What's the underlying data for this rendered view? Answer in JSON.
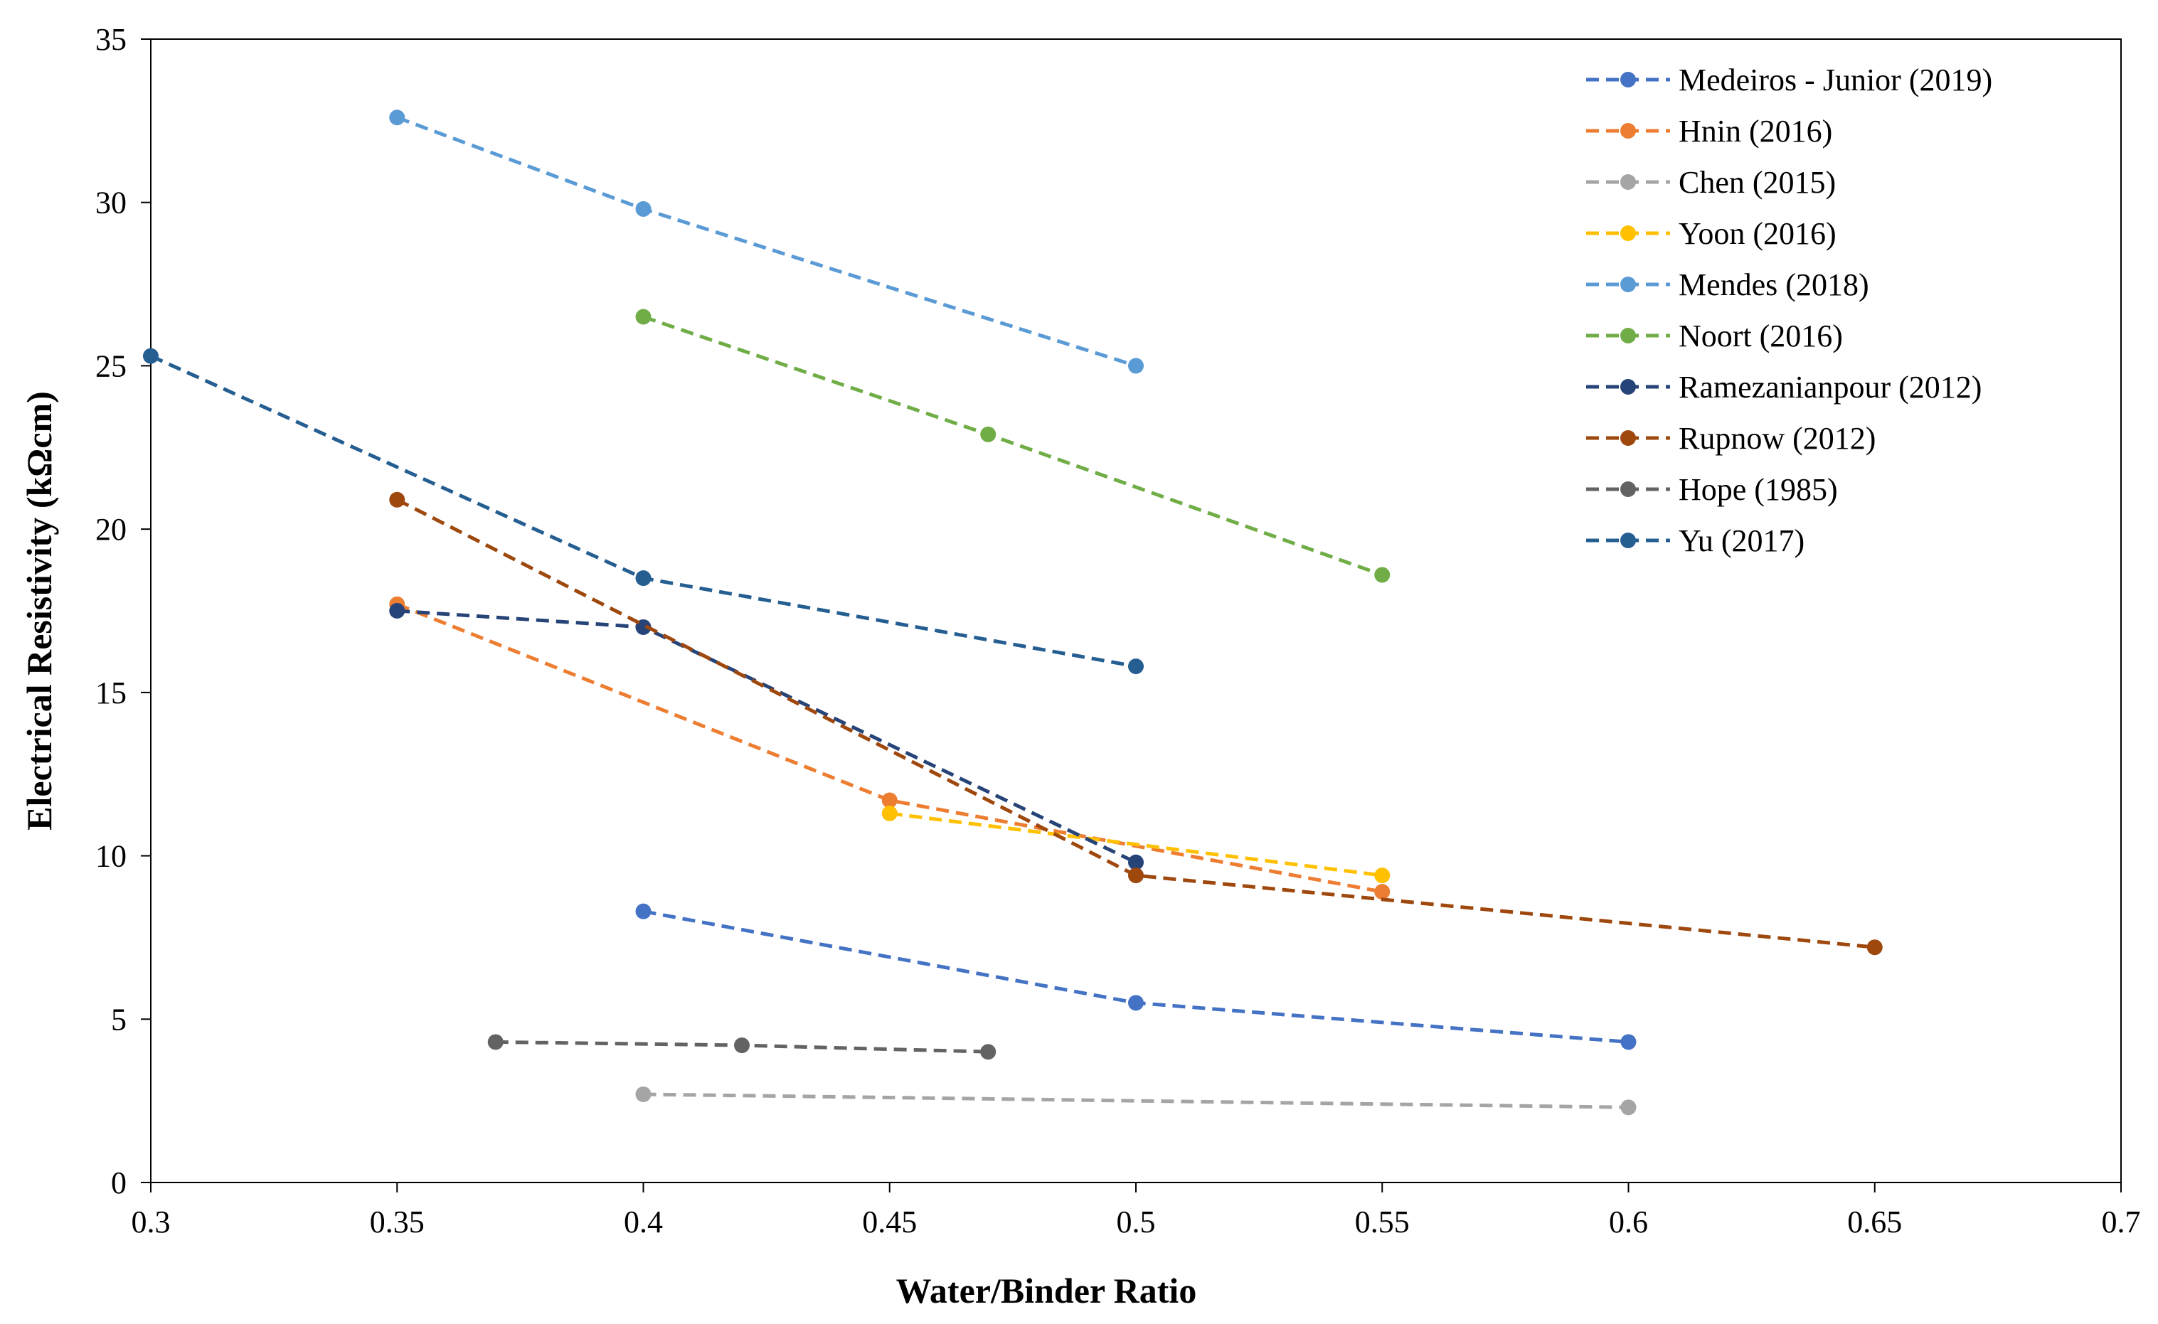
{
  "chart_data": {
    "type": "line",
    "title": "",
    "xlabel": "Water/Binder Ratio",
    "ylabel": "Electrical Resistivity  (kΩcm)",
    "xlim": [
      0.3,
      0.7
    ],
    "ylim": [
      0,
      35
    ],
    "x_ticks": [
      0.3,
      0.35,
      0.4,
      0.45,
      0.5,
      0.55,
      0.6,
      0.65,
      0.7
    ],
    "x_tick_labels": [
      "0.3",
      "0.35",
      "0.4",
      "0.45",
      "0.5",
      "0.55",
      "0.6",
      "0.65",
      "0.7"
    ],
    "y_ticks": [
      0,
      5,
      10,
      15,
      20,
      25,
      30,
      35
    ],
    "y_tick_labels": [
      "0",
      "5",
      "10",
      "15",
      "20",
      "25",
      "30",
      "35"
    ],
    "grid": false,
    "legend_position": "top-right",
    "line_style": "dashed",
    "series": [
      {
        "name": "Medeiros - Junior (2019)",
        "color": "#4472C4",
        "x": [
          0.4,
          0.5,
          0.6
        ],
        "y": [
          8.3,
          5.5,
          4.3
        ]
      },
      {
        "name": "Hnin (2016)",
        "color": "#ED7D31",
        "x": [
          0.35,
          0.45,
          0.55
        ],
        "y": [
          17.7,
          11.7,
          8.9
        ]
      },
      {
        "name": "Chen (2015)",
        "color": "#A5A5A5",
        "x": [
          0.4,
          0.6
        ],
        "y": [
          2.7,
          2.3
        ]
      },
      {
        "name": "Yoon (2016)",
        "color": "#FFC000",
        "x": [
          0.45,
          0.55
        ],
        "y": [
          11.3,
          9.4
        ]
      },
      {
        "name": "Mendes (2018)",
        "color": "#5B9BD5",
        "x": [
          0.35,
          0.4,
          0.5
        ],
        "y": [
          32.6,
          29.8,
          25.0
        ]
      },
      {
        "name": "Noort (2016)",
        "color": "#70AD47",
        "x": [
          0.4,
          0.47,
          0.55
        ],
        "y": [
          26.5,
          22.9,
          18.6
        ]
      },
      {
        "name": "Ramezanianpour (2012)",
        "color": "#264478",
        "x": [
          0.35,
          0.4,
          0.5
        ],
        "y": [
          17.5,
          17.0,
          9.8
        ]
      },
      {
        "name": "Rupnow (2012)",
        "color": "#9E480E",
        "x": [
          0.35,
          0.5,
          0.65
        ],
        "y": [
          20.9,
          9.4,
          7.2
        ]
      },
      {
        "name": "Hope (1985)",
        "color": "#636363",
        "x": [
          0.37,
          0.42,
          0.47
        ],
        "y": [
          4.3,
          4.2,
          4.0
        ]
      },
      {
        "name": "Yu (2017)",
        "color": "#255E91",
        "x": [
          0.3,
          0.4,
          0.5
        ],
        "y": [
          25.3,
          18.5,
          15.8
        ]
      }
    ]
  }
}
